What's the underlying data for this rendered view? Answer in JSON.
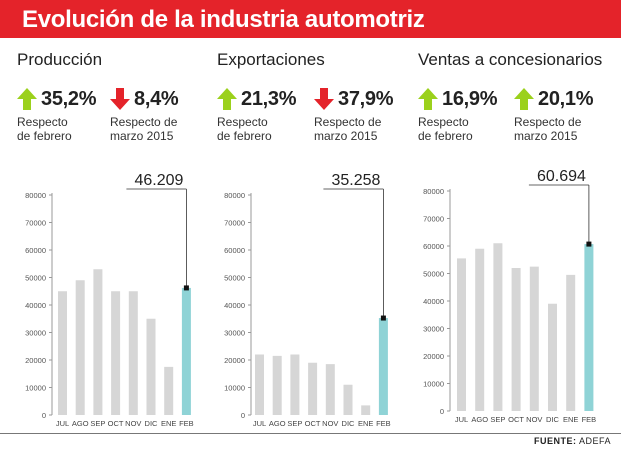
{
  "header": {
    "title": "Evolución de la industria automotriz"
  },
  "colors": {
    "banner": "#e4232a",
    "up": "#9bd11c",
    "down": "#e4232a",
    "bar": "#d6d6d6",
    "highlight": "#8fd3d6"
  },
  "sections": [
    {
      "title": "Producción",
      "stats": [
        {
          "direction": "up",
          "icon": "arrow-up-icon",
          "value": "35,2%",
          "desc1": "Respecto",
          "desc2": "de febrero"
        },
        {
          "direction": "down",
          "icon": "arrow-down-icon",
          "value": "8,4%",
          "desc1": "Respecto de",
          "desc2": "marzo 2015"
        }
      ]
    },
    {
      "title": "Exportaciones",
      "stats": [
        {
          "direction": "up",
          "icon": "arrow-up-icon",
          "value": "21,3%",
          "desc1": "Respecto",
          "desc2": "de febrero"
        },
        {
          "direction": "down",
          "icon": "arrow-down-icon",
          "value": "37,9%",
          "desc1": "Respecto de",
          "desc2": "marzo 2015"
        }
      ]
    },
    {
      "title": "Ventas a concesionarios",
      "stats": [
        {
          "direction": "up",
          "icon": "arrow-up-icon",
          "value": "16,9%",
          "desc1": "Respecto",
          "desc2": "de febrero"
        },
        {
          "direction": "up",
          "icon": "arrow-up-icon",
          "value": "20,1%",
          "desc1": "Respecto de",
          "desc2": "marzo 2015"
        }
      ]
    }
  ],
  "chart_data": [
    {
      "type": "bar",
      "categories": [
        "JUL",
        "AGO",
        "SEP",
        "OCT",
        "NOV",
        "DIC",
        "ENE",
        "FEB"
      ],
      "values": [
        45000,
        49000,
        53000,
        45000,
        45000,
        35000,
        17500,
        46209
      ],
      "highlight_index": 7,
      "callout": "46.209",
      "ylim": [
        0,
        80000
      ],
      "yticks": [
        0,
        10000,
        20000,
        30000,
        40000,
        50000,
        60000,
        70000,
        80000
      ],
      "grid": false
    },
    {
      "type": "bar",
      "categories": [
        "JUL",
        "AGO",
        "SEP",
        "OCT",
        "NOV",
        "DIC",
        "ENE",
        "FEB"
      ],
      "values": [
        22000,
        21500,
        22000,
        19000,
        18500,
        11000,
        3500,
        35258
      ],
      "highlight_index": 7,
      "callout": "35.258",
      "ylim": [
        0,
        80000
      ],
      "yticks": [
        0,
        10000,
        20000,
        30000,
        40000,
        50000,
        60000,
        70000,
        80000
      ],
      "grid": false
    },
    {
      "type": "bar",
      "categories": [
        "JUL",
        "AGO",
        "SEP",
        "OCT",
        "NOV",
        "DIC",
        "ENE",
        "FEB"
      ],
      "values": [
        55500,
        59000,
        61000,
        52000,
        52500,
        39000,
        49500,
        60694
      ],
      "highlight_index": 7,
      "callout": "60.694",
      "ylim": [
        0,
        80000
      ],
      "yticks": [
        0,
        10000,
        20000,
        30000,
        40000,
        50000,
        60000,
        70000,
        80000
      ],
      "grid": false
    }
  ],
  "footer": {
    "source_label": "FUENTE:",
    "source_value": "ADEFA"
  }
}
